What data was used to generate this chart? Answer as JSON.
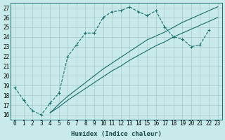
{
  "xlabel": "Humidex (Indice chaleur)",
  "ylabel": "",
  "xlim": [
    -0.5,
    23.5
  ],
  "ylim": [
    15.5,
    27.5
  ],
  "xticks": [
    0,
    1,
    2,
    3,
    4,
    5,
    6,
    7,
    8,
    9,
    10,
    11,
    12,
    13,
    14,
    15,
    16,
    17,
    18,
    19,
    20,
    21,
    22,
    23
  ],
  "yticks": [
    16,
    17,
    18,
    19,
    20,
    21,
    22,
    23,
    24,
    25,
    26,
    27
  ],
  "background_color": "#c8eaea",
  "grid_color": "#a8c8c8",
  "line_color": "#1a6b6b",
  "line1_x": [
    0,
    1,
    2,
    3,
    4,
    5,
    6,
    7,
    8,
    9,
    10,
    11,
    12,
    13,
    14,
    15,
    16,
    17,
    18,
    19,
    20,
    21,
    22
  ],
  "line1_y": [
    18.8,
    17.5,
    16.4,
    16.0,
    17.2,
    18.2,
    22.0,
    23.2,
    24.4,
    24.4,
    26.0,
    26.6,
    26.7,
    27.1,
    26.6,
    26.2,
    26.7,
    25.0,
    24.0,
    23.8,
    23.0,
    23.2,
    24.7
  ],
  "line2_x": [
    4,
    5,
    6,
    7,
    8,
    9,
    10,
    11,
    12,
    13,
    14,
    15,
    16,
    17,
    18,
    19,
    20,
    21,
    22,
    23
  ],
  "line2_y": [
    16.2,
    17.1,
    17.9,
    18.6,
    19.3,
    20.0,
    20.7,
    21.3,
    21.9,
    22.5,
    23.1,
    23.7,
    24.1,
    24.5,
    25.0,
    25.5,
    25.9,
    26.3,
    26.7,
    27.1
  ],
  "line3_x": [
    4,
    5,
    6,
    7,
    8,
    9,
    10,
    11,
    12,
    13,
    14,
    15,
    16,
    17,
    18,
    19,
    20,
    21,
    22,
    23
  ],
  "line3_y": [
    16.2,
    16.8,
    17.5,
    18.1,
    18.7,
    19.3,
    19.9,
    20.5,
    21.0,
    21.6,
    22.1,
    22.6,
    23.1,
    23.5,
    24.0,
    24.4,
    24.8,
    25.2,
    25.6,
    26.0
  ],
  "title_fontsize": 7,
  "tick_fontsize": 5.5,
  "label_fontsize": 6.5
}
